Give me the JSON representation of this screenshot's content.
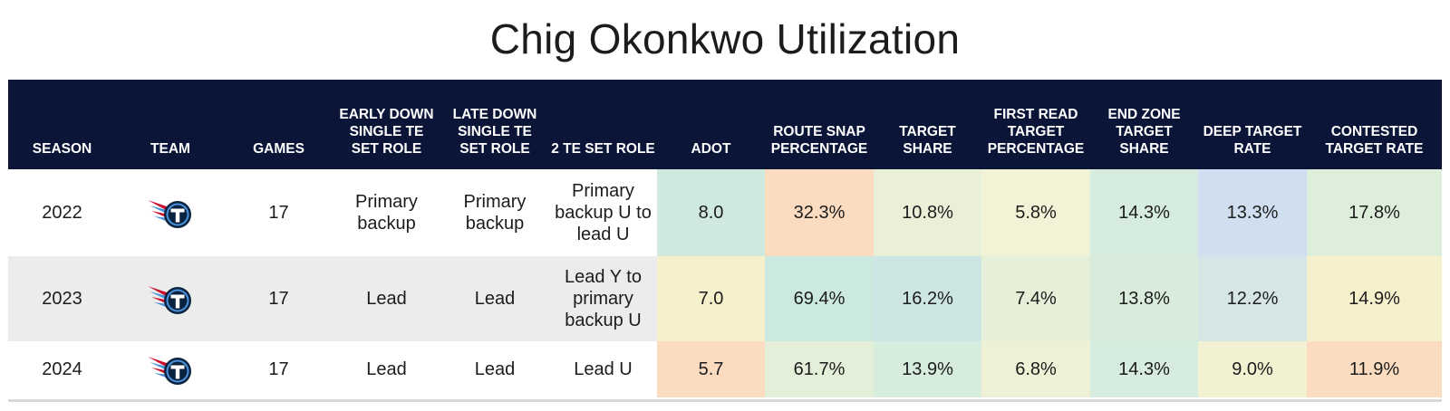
{
  "title": "Chig Okonkwo Utilization",
  "columns": [
    "SEASON",
    "TEAM",
    "GAMES",
    "EARLY DOWN SINGLE TE SET ROLE",
    "LATE DOWN SINGLE TE SET ROLE",
    "2 TE SET ROLE",
    "ADOT",
    "ROUTE SNAP PERCENTAGE",
    "TARGET SHARE",
    "FIRST READ TARGET PERCENTAGE",
    "END ZONE TARGET SHARE",
    "DEEP TARGET RATE",
    "CONTESTED TARGET RATE"
  ],
  "team_icon": "titans-logo-icon",
  "rows": [
    {
      "season": "2022",
      "games": "17",
      "early_down_role": "Primary backup",
      "late_down_role": "Primary backup",
      "two_te_role": "Primary backup U to lead U",
      "adot": "8.0",
      "route_snap_pct": "32.3%",
      "target_share": "10.8%",
      "first_read_pct": "5.8%",
      "end_zone_share": "14.3%",
      "deep_target_rate": "13.3%",
      "contested_target_rate": "17.8%",
      "heat_colors": [
        "#cfe9df",
        "#fcdcc0",
        "#eaf0d8",
        "#f2f2d6",
        "#d6ecdf",
        "#cfdff0",
        "#ddeedb"
      ]
    },
    {
      "season": "2023",
      "games": "17",
      "early_down_role": "Lead",
      "late_down_role": "Lead",
      "two_te_role": "Lead Y to primary backup U",
      "adot": "7.0",
      "route_snap_pct": "69.4%",
      "target_share": "16.2%",
      "first_read_pct": "7.4%",
      "end_zone_share": "13.8%",
      "deep_target_rate": "12.2%",
      "contested_target_rate": "14.9%",
      "heat_colors": [
        "#f7f0cd",
        "#cce9df",
        "#cde6e3",
        "#e6efd8",
        "#d9ecdc",
        "#d6e6e6",
        "#f7f0cd"
      ]
    },
    {
      "season": "2024",
      "games": "17",
      "early_down_role": "Lead",
      "late_down_role": "Lead",
      "two_te_role": "Lead U",
      "adot": "5.7",
      "route_snap_pct": "61.7%",
      "target_share": "13.9%",
      "first_read_pct": "6.8%",
      "end_zone_share": "14.3%",
      "deep_target_rate": "9.0%",
      "contested_target_rate": "11.9%",
      "heat_colors": [
        "#fcdcc0",
        "#e3efd9",
        "#d6ecdc",
        "#eff1d6",
        "#d6ecdf",
        "#f2f1d2",
        "#fcdcc0"
      ]
    }
  ],
  "chart_data": {
    "type": "table",
    "title": "Chig Okonkwo Utilization",
    "columns": [
      "SEASON",
      "TEAM",
      "GAMES",
      "EARLY DOWN SINGLE TE SET ROLE",
      "LATE DOWN SINGLE TE SET ROLE",
      "2 TE SET ROLE",
      "ADOT",
      "ROUTE SNAP PERCENTAGE",
      "TARGET SHARE",
      "FIRST READ TARGET PERCENTAGE",
      "END ZONE TARGET SHARE",
      "DEEP TARGET RATE",
      "CONTESTED TARGET RATE"
    ],
    "rows": [
      [
        "2022",
        "",
        "17",
        "Primary backup",
        "Primary backup",
        "Primary backup U to lead U",
        "8.0",
        "32.3%",
        "10.8%",
        "5.8%",
        "14.3%",
        "13.3%",
        "17.8%"
      ],
      [
        "2023",
        "",
        "17",
        "Lead",
        "Lead",
        "Lead Y to primary backup U",
        "7.0",
        "69.4%",
        "16.2%",
        "7.4%",
        "13.8%",
        "12.2%",
        "14.9%"
      ],
      [
        "2024",
        "",
        "17",
        "Lead",
        "Lead",
        "Lead U",
        "5.7",
        "61.7%",
        "13.9%",
        "6.8%",
        "14.3%",
        "9.0%",
        "11.9%"
      ]
    ]
  }
}
